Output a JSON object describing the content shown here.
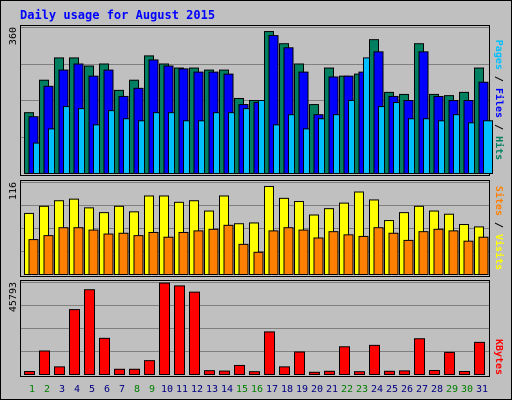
{
  "chart_data": {
    "type": "bar",
    "title": "Daily usage for August 2015",
    "categories": [
      "1",
      "2",
      "3",
      "4",
      "5",
      "6",
      "7",
      "8",
      "9",
      "10",
      "11",
      "12",
      "13",
      "14",
      "15",
      "16",
      "17",
      "18",
      "19",
      "20",
      "21",
      "22",
      "23",
      "24",
      "25",
      "26",
      "27",
      "28",
      "29",
      "30",
      "31"
    ],
    "weekend_days": [
      "1",
      "2",
      "8",
      "9",
      "15",
      "16",
      "22",
      "23",
      "29",
      "30"
    ],
    "panels": [
      {
        "id": "top",
        "ymax_label": "360",
        "ymax": 360,
        "side_label": [
          {
            "text": "Pages",
            "color": "#00c0ff"
          },
          {
            "text": " / ",
            "color": "#000000"
          },
          {
            "text": "Files",
            "color": "#0000ff"
          },
          {
            "text": " / ",
            "color": "#000000"
          },
          {
            "text": "Hits",
            "color": "#008060"
          }
        ],
        "series": [
          {
            "name": "Hits",
            "color": "#008060",
            "values": [
              150,
              230,
              285,
              285,
              265,
              270,
              205,
              230,
              290,
              270,
              260,
              260,
              255,
              255,
              185,
              180,
              350,
              320,
              270,
              170,
              260,
              240,
              245,
              330,
              200,
              195,
              320,
              195,
              192,
              200,
              260
            ]
          },
          {
            "name": "Files",
            "color": "#0000ff",
            "values": [
              140,
              215,
              255,
              270,
              240,
              255,
              190,
              210,
              280,
              265,
              258,
              250,
              250,
              245,
              170,
              175,
              340,
              310,
              250,
              145,
              238,
              240,
              250,
              300,
              190,
              180,
              300,
              190,
              180,
              180,
              225
            ]
          },
          {
            "name": "Pages",
            "color": "#00c0ff",
            "values": [
              75,
              110,
              165,
              160,
              120,
              155,
              135,
              130,
              150,
              150,
              130,
              130,
              150,
              150,
              160,
              180,
              120,
              145,
              110,
              135,
              145,
              180,
              285,
              165,
              175,
              135,
              135,
              130,
              145,
              125,
              130
            ]
          }
        ]
      },
      {
        "id": "middle",
        "ymax_label": "116",
        "ymax": 116,
        "side_label": [
          {
            "text": "Sites",
            "color": "#ff8000"
          },
          {
            "text": " / ",
            "color": "#000000"
          },
          {
            "text": "Visits",
            "color": "#ffff00"
          }
        ],
        "series": [
          {
            "name": "Visits",
            "color": "#ffff00",
            "values": [
              77,
              86,
              93,
              95,
              84,
              78,
              86,
              79,
              99,
              99,
              91,
              93,
              80,
              99,
              64,
              65,
              111,
              96,
              92,
              75,
              83,
              90,
              104,
              94,
              68,
              78,
              86,
              80,
              76,
              63,
              60
            ]
          },
          {
            "name": "Sites",
            "color": "#ff8000",
            "values": [
              44,
              49,
              59,
              59,
              56,
              51,
              52,
              49,
              53,
              47,
              53,
              55,
              57,
              62,
              38,
              28,
              55,
              59,
              56,
              46,
              54,
              50,
              48,
              59,
              52,
              43,
              54,
              57,
              55,
              42,
              47
            ]
          }
        ]
      },
      {
        "id": "bottom",
        "ymax_label": "45793",
        "ymax": 45793,
        "side_label": [
          {
            "text": "KBytes",
            "color": "#ff0000"
          }
        ],
        "series": [
          {
            "name": "KBytes",
            "color": "#ff0000",
            "values": [
              1500,
              11700,
              3800,
              32300,
              42200,
              18000,
              2600,
              2600,
              6900,
              45500,
              44100,
              41000,
              1900,
              1700,
              4500,
              1400,
              21200,
              3800,
              11200,
              1100,
              1600,
              13800,
              1400,
              14500,
              1600,
              1800,
              17800,
              2000,
              11000,
              1500,
              16000
            ]
          }
        ]
      }
    ]
  }
}
